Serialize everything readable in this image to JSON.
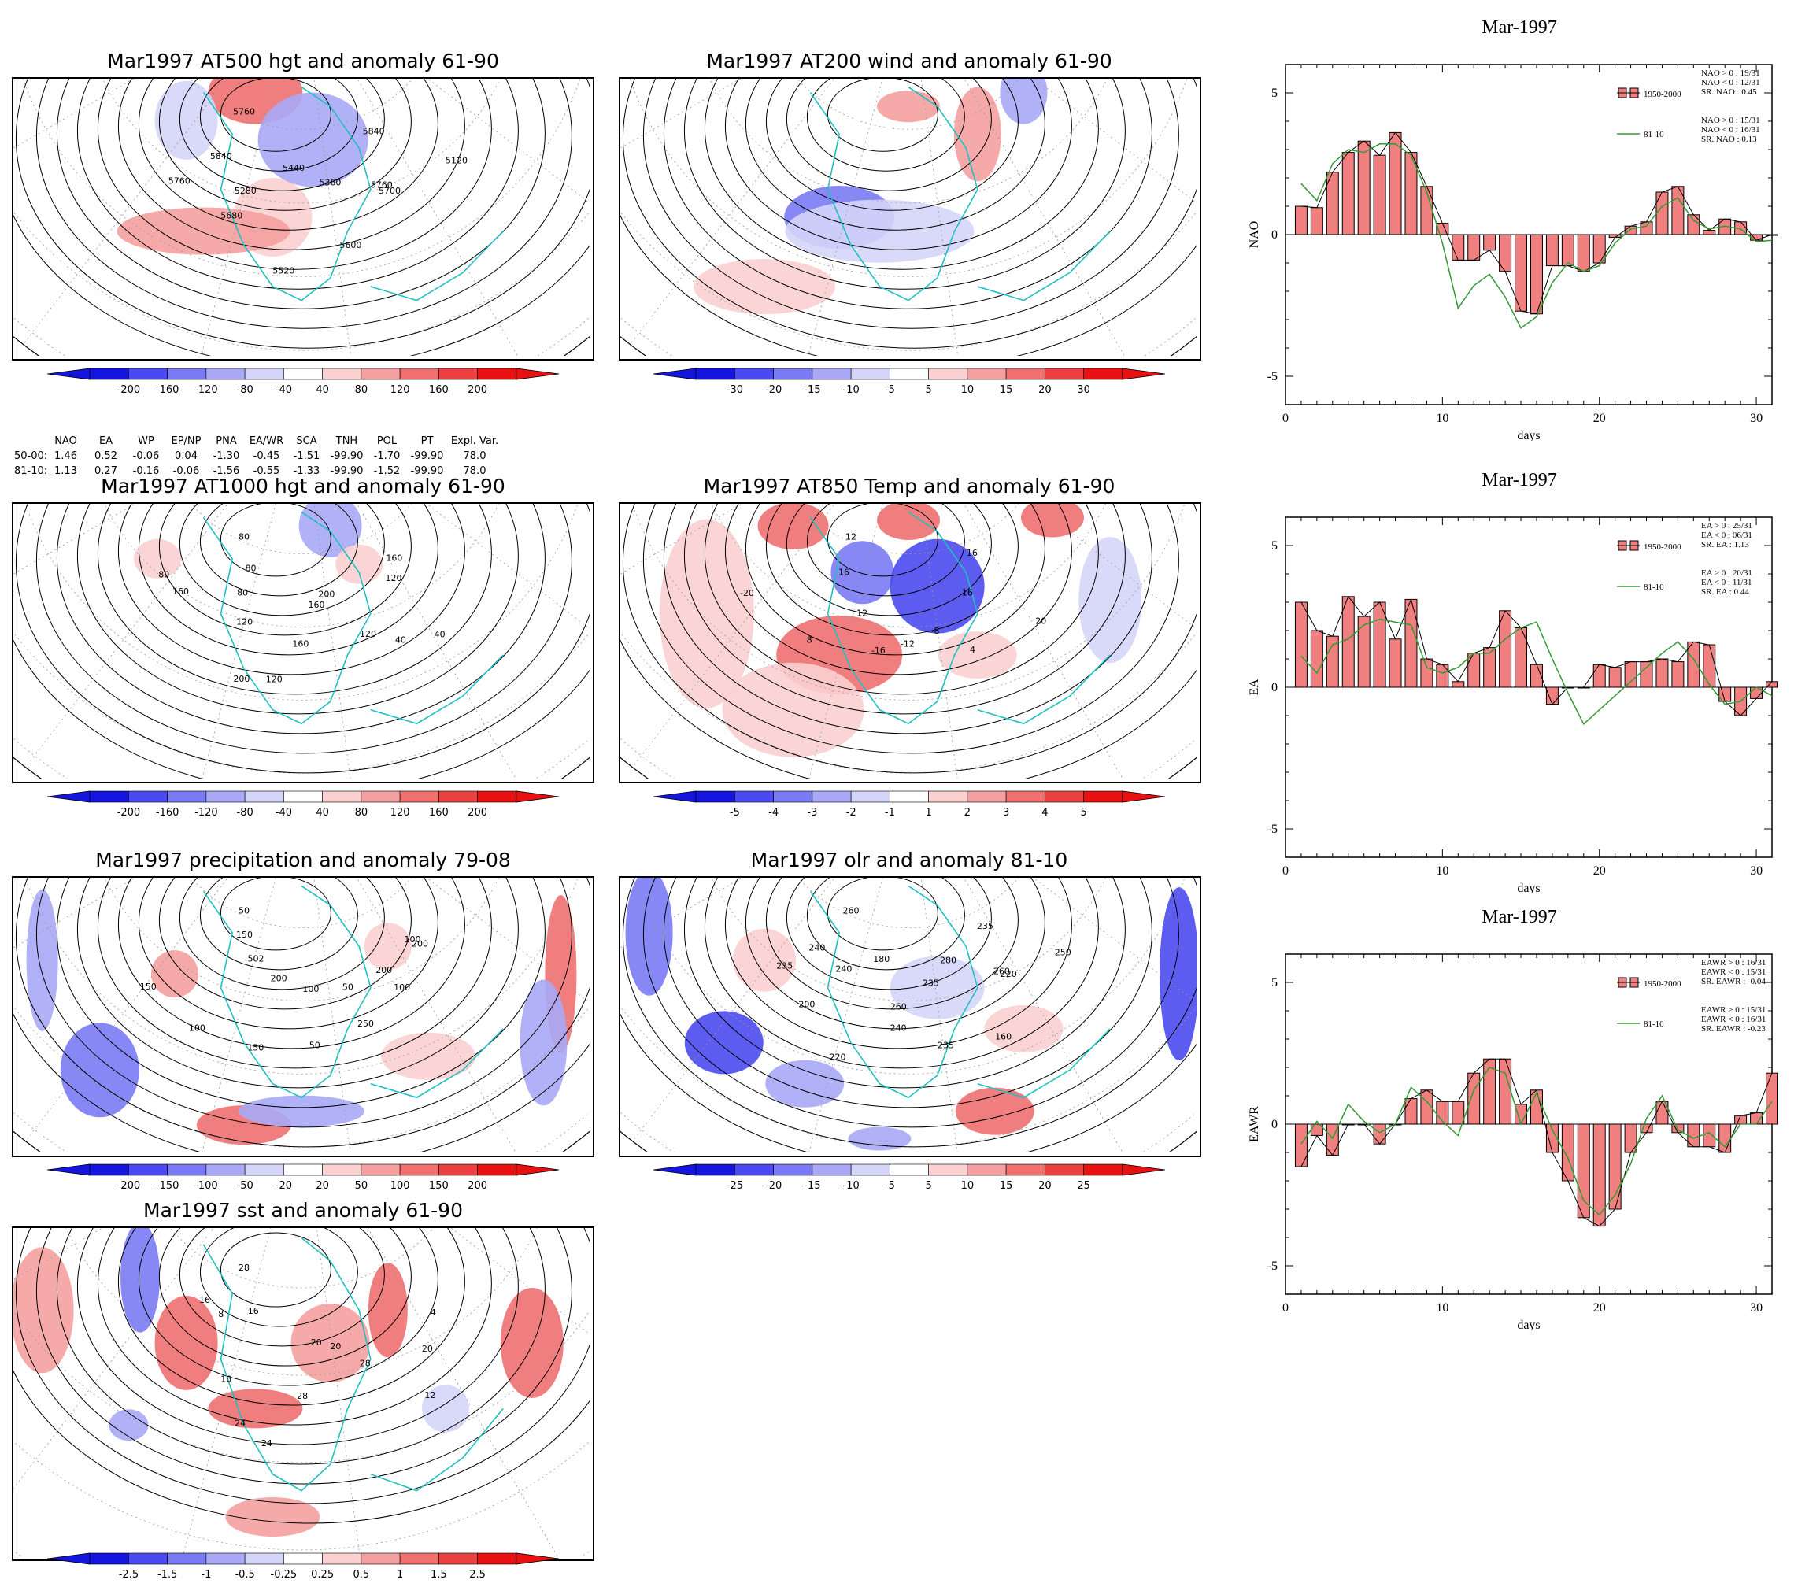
{
  "maps": [
    {
      "id": "hgt500",
      "title": "Mar1997 AT500 hgt and anomaly 61-90",
      "colorbar": [
        "-200",
        "-160",
        "-120",
        "-80",
        "-40",
        "40",
        "80",
        "120",
        "160",
        "200"
      ],
      "contour_labels": [
        "5760",
        "5120",
        "5760",
        "5700",
        "5280",
        "5360",
        "5440",
        "5520",
        "5600",
        "5680",
        "5760",
        "5840",
        "5840"
      ]
    },
    {
      "id": "wind200",
      "title": "Mar1997 AT200 wind and anomaly 61-90",
      "colorbar": [
        "-30",
        "-20",
        "-15",
        "-10",
        "-5",
        "5",
        "10",
        "15",
        "20",
        "30"
      ],
      "contour_labels": []
    },
    {
      "id": "hgt1000",
      "title": "Mar1997 AT1000 hgt and anomaly 61-90",
      "colorbar": [
        "-200",
        "-160",
        "-120",
        "-80",
        "-40",
        "40",
        "80",
        "120",
        "160",
        "200"
      ],
      "contour_labels": [
        "80",
        "160",
        "160",
        "40",
        "80",
        "120",
        "200",
        "160",
        "160",
        "120",
        "200",
        "120",
        "40",
        "80",
        "120",
        "80"
      ]
    },
    {
      "id": "temp850",
      "title": "Mar1997 AT850 Temp and anomaly 61-90",
      "colorbar": [
        "-5",
        "-4",
        "-3",
        "-2",
        "-1",
        "1",
        "2",
        "3",
        "4",
        "5"
      ],
      "contour_labels": [
        "12",
        "16",
        "16",
        "16",
        "12",
        "-8",
        "-12",
        "-16",
        "4",
        "8",
        "20",
        "-20"
      ]
    },
    {
      "id": "precip",
      "title": "Mar1997 precipitation and anomaly 79-08",
      "colorbar": [
        "-200",
        "-150",
        "-100",
        "-50",
        "-20",
        "20",
        "50",
        "100",
        "150",
        "200"
      ],
      "contour_labels": [
        "50",
        "100",
        "150",
        "200",
        "100",
        "50",
        "150",
        "100",
        "50",
        "200",
        "250",
        "502",
        "100",
        "150",
        "200"
      ]
    },
    {
      "id": "olr",
      "title": "Mar1997 olr and anomaly 81-10",
      "colorbar": [
        "-25",
        "-20",
        "-15",
        "-10",
        "-5",
        "5",
        "10",
        "15",
        "20",
        "25"
      ],
      "contour_labels": [
        "260",
        "235",
        "240",
        "220",
        "200",
        "160",
        "180",
        "235",
        "260",
        "240",
        "235",
        "220",
        "280",
        "240",
        "260",
        "235",
        "250"
      ]
    },
    {
      "id": "sst",
      "title": "Mar1997 sst and anomaly 61-90",
      "colorbar": [
        "-2.5",
        "-1.5",
        "-1",
        "-0.5",
        "-0.25",
        "0.25",
        "0.5",
        "1",
        "1.5",
        "2.5"
      ],
      "contour_labels": [
        "28",
        "4",
        "8",
        "12",
        "16",
        "20",
        "24",
        "28",
        "20",
        "24",
        "28",
        "16",
        "20",
        "16"
      ]
    }
  ],
  "teleconnection_table": {
    "headers": [
      "NAO",
      "EA",
      "WP",
      "EP/NP",
      "PNA",
      "EA/WR",
      "SCA",
      "TNH",
      "POL",
      "PT",
      "Expl. Var."
    ],
    "rows": [
      {
        "label": "50-00:",
        "values": [
          "1.46",
          "0.52",
          "-0.06",
          "0.04",
          "-1.30",
          "-0.45",
          "-1.51",
          "-99.90",
          "-1.70",
          "-99.90",
          "78.0"
        ]
      },
      {
        "label": "81-10:",
        "values": [
          "1.13",
          "0.27",
          "-0.16",
          "-0.06",
          "-1.56",
          "-0.55",
          "-1.33",
          "-99.90",
          "-1.52",
          "-99.90",
          "78.0"
        ]
      }
    ]
  },
  "chart_data": [
    {
      "type": "bar",
      "title": "Mar-1997",
      "xlabel": "days",
      "ylabel": "NAO",
      "xlim": [
        0,
        31
      ],
      "ylim": [
        -6,
        6
      ],
      "xticks": [
        "0",
        "10",
        "20",
        "30"
      ],
      "yticks": [
        "5",
        "0",
        "-5"
      ],
      "x": [
        1,
        2,
        3,
        4,
        5,
        6,
        7,
        8,
        9,
        10,
        11,
        12,
        13,
        14,
        15,
        16,
        17,
        18,
        19,
        20,
        21,
        22,
        23,
        24,
        25,
        26,
        27,
        28,
        29,
        30,
        31
      ],
      "series": [
        {
          "name": "1950-2000",
          "kind": "bar",
          "color": "#f08080",
          "values": [
            1.0,
            0.95,
            2.2,
            2.9,
            3.3,
            2.8,
            3.6,
            2.9,
            1.7,
            0.4,
            -0.9,
            -0.9,
            -0.55,
            -1.3,
            -2.7,
            -2.8,
            -1.1,
            -1.1,
            -1.3,
            -1.0,
            -0.1,
            0.3,
            0.45,
            1.5,
            1.7,
            0.7,
            0.15,
            0.55,
            0.45,
            -0.2,
            0.0
          ]
        },
        {
          "name": "81-10",
          "kind": "line",
          "color": "#339933",
          "values": [
            1.8,
            1.2,
            2.5,
            3.0,
            2.9,
            3.2,
            3.2,
            2.8,
            1.5,
            -0.3,
            -2.6,
            -1.8,
            -1.4,
            -2.2,
            -3.3,
            -2.9,
            -1.7,
            -1.0,
            -1.3,
            -1.1,
            -0.3,
            0.2,
            0.3,
            1.0,
            1.3,
            0.5,
            0.2,
            0.3,
            0.2,
            -0.25,
            -0.2
          ]
        }
      ],
      "legend": {
        "bar_label": "1950-2000",
        "line_label": "81-10",
        "stats_a": [
          "NAO > 0 : 19/31",
          "NAO < 0 : 12/31",
          "SR. NAO : 0.45"
        ],
        "stats_b": [
          "NAO > 0 : 15/31",
          "NAO < 0 : 16/31",
          "SR. NAO : 0.13"
        ]
      }
    },
    {
      "type": "bar",
      "title": "Mar-1997",
      "xlabel": "days",
      "ylabel": "EA",
      "xlim": [
        0,
        31
      ],
      "ylim": [
        -6,
        6
      ],
      "xticks": [
        "0",
        "10",
        "20",
        "30"
      ],
      "yticks": [
        "5",
        "0",
        "-5"
      ],
      "x": [
        1,
        2,
        3,
        4,
        5,
        6,
        7,
        8,
        9,
        10,
        11,
        12,
        13,
        14,
        15,
        16,
        17,
        18,
        19,
        20,
        21,
        22,
        23,
        24,
        25,
        26,
        27,
        28,
        29,
        30,
        31
      ],
      "series": [
        {
          "name": "1950-2000",
          "kind": "bar",
          "color": "#f08080",
          "values": [
            3.0,
            2.0,
            1.8,
            3.2,
            2.5,
            3.0,
            1.7,
            3.1,
            1.0,
            0.8,
            0.2,
            1.2,
            1.4,
            2.7,
            2.1,
            0.8,
            -0.6,
            0.0,
            0.0,
            0.8,
            0.7,
            0.9,
            0.9,
            1.0,
            0.9,
            1.6,
            1.5,
            -0.5,
            -1.0,
            -0.4,
            0.2
          ]
        },
        {
          "name": "81-10",
          "kind": "line",
          "color": "#339933",
          "values": [
            1.1,
            0.5,
            1.5,
            1.7,
            2.2,
            2.4,
            2.3,
            2.2,
            0.7,
            0.5,
            0.7,
            1.2,
            1.2,
            1.7,
            2.1,
            2.3,
            1.0,
            -0.2,
            -1.3,
            -0.8,
            -0.3,
            0.2,
            0.7,
            1.2,
            1.6,
            1.0,
            0.1,
            -0.6,
            -0.5,
            0.0,
            -0.3
          ]
        }
      ],
      "legend": {
        "bar_label": "1950-2000",
        "line_label": "81-10",
        "stats_a": [
          "EA > 0 : 25/31",
          "EA < 0 : 06/31",
          "SR. EA : 1.13"
        ],
        "stats_b": [
          "EA > 0 : 20/31",
          "EA < 0 : 11/31",
          "SR. EA : 0.44"
        ]
      }
    },
    {
      "type": "bar",
      "title": "Mar-1997",
      "xlabel": "days",
      "ylabel": "EAWR",
      "xlim": [
        0,
        31
      ],
      "ylim": [
        -6,
        6
      ],
      "xticks": [
        "0",
        "10",
        "20",
        "30"
      ],
      "yticks": [
        "5",
        "0",
        "-5"
      ],
      "x": [
        1,
        2,
        3,
        4,
        5,
        6,
        7,
        8,
        9,
        10,
        11,
        12,
        13,
        14,
        15,
        16,
        17,
        18,
        19,
        20,
        21,
        22,
        23,
        24,
        25,
        26,
        27,
        28,
        29,
        30,
        31
      ],
      "series": [
        {
          "name": "1950-2000",
          "kind": "bar",
          "color": "#f08080",
          "values": [
            -1.5,
            -0.4,
            -1.1,
            0.0,
            0.0,
            -0.7,
            0.0,
            0.9,
            1.2,
            0.8,
            0.8,
            1.8,
            2.3,
            2.3,
            0.7,
            1.2,
            -1.0,
            -2.0,
            -3.3,
            -3.6,
            -3.0,
            -1.0,
            -0.3,
            0.8,
            -0.3,
            -0.8,
            -0.8,
            -1.0,
            0.3,
            0.4,
            1.8
          ]
        },
        {
          "name": "81-10",
          "kind": "line",
          "color": "#339933",
          "values": [
            -0.7,
            0.1,
            -0.5,
            0.7,
            0.1,
            -0.3,
            0.0,
            1.3,
            0.8,
            0.1,
            -0.4,
            1.2,
            2.0,
            1.8,
            0.0,
            1.1,
            -0.2,
            -1.2,
            -2.7,
            -3.2,
            -2.5,
            -1.4,
            0.2,
            1.0,
            -0.2,
            -0.5,
            -0.3,
            -0.8,
            0.0,
            0.0,
            0.8
          ]
        }
      ],
      "legend": {
        "bar_label": "1950-2000",
        "line_label": "81-10",
        "stats_a": [
          "EAWR > 0 : 16/31",
          "EAWR < 0 : 15/31",
          "SR. EAWR : -0.04"
        ],
        "stats_b": [
          "EAWR > 0 : 15/31",
          "EAWR < 0 : 16/31",
          "SR. EAWR : -0.23"
        ]
      }
    }
  ]
}
